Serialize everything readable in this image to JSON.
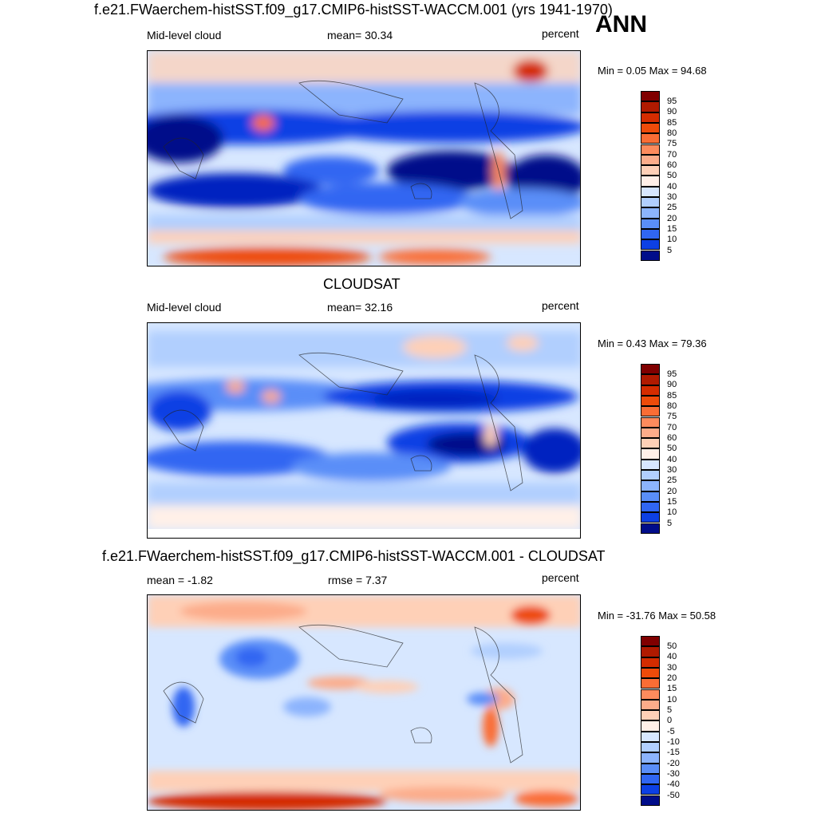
{
  "season": "ANN",
  "panels": [
    {
      "title": "f.e21.FWaerchem-histSST.f09_g17.CMIP6-histSST-WACCM.001 (yrs 1941-1970)",
      "left_label": "Mid-level cloud",
      "center_label": "mean=  30.34",
      "right_label": "percent",
      "range_text": "Min =   0.05 Max =  94.68",
      "colorbar": {
        "colors": [
          "#800000",
          "#b01a00",
          "#d42c00",
          "#ee4b0a",
          "#fa6d35",
          "#fd8b5d",
          "#fcac8a",
          "#fed0b7",
          "#fff0e8",
          "#d7e7ff",
          "#b1cffe",
          "#8cb4fd",
          "#5a8ef8",
          "#3066f2",
          "#0d40e4",
          "#0020c0",
          "#000d8a"
        ],
        "labels": [
          "95",
          "90",
          "85",
          "80",
          "75",
          "70",
          "60",
          "50",
          "40",
          "30",
          "25",
          "20",
          "15",
          "10",
          "5"
        ]
      }
    },
    {
      "title": "CLOUDSAT",
      "left_label": "Mid-level cloud",
      "center_label": "mean=  32.16",
      "right_label": "percent",
      "range_text": "Min =   0.43 Max =  79.36",
      "colorbar": {
        "colors": [
          "#800000",
          "#b01a00",
          "#d42c00",
          "#ee4b0a",
          "#fa6d35",
          "#fd8b5d",
          "#fcac8a",
          "#fed0b7",
          "#fff0e8",
          "#d7e7ff",
          "#b1cffe",
          "#8cb4fd",
          "#5a8ef8",
          "#3066f2",
          "#0d40e4",
          "#0020c0",
          "#000d8a"
        ],
        "labels": [
          "95",
          "90",
          "85",
          "80",
          "75",
          "70",
          "60",
          "50",
          "40",
          "30",
          "25",
          "20",
          "15",
          "10",
          "5"
        ]
      }
    },
    {
      "title": "f.e21.FWaerchem-histSST.f09_g17.CMIP6-histSST-WACCM.001 - CLOUDSAT",
      "left_label": "mean =  -1.82",
      "center_label": "rmse =   7.37",
      "right_label": "percent",
      "range_text": "Min = -31.76 Max =  50.58",
      "colorbar": {
        "colors": [
          "#800000",
          "#b01a00",
          "#d42c00",
          "#ee4b0a",
          "#fa6d35",
          "#fd8b5d",
          "#fcac8a",
          "#fed0b7",
          "#fff0e8",
          "#d7e7ff",
          "#b1cffe",
          "#8cb4fd",
          "#5a8ef8",
          "#3066f2",
          "#0d40e4",
          "#0020c0",
          "#000d8a"
        ],
        "labels": [
          "50",
          "40",
          "30",
          "20",
          "15",
          "10",
          "5",
          "0",
          "-5",
          "-10",
          "-15",
          "-20",
          "-30",
          "-40",
          "-50"
        ]
      }
    }
  ]
}
